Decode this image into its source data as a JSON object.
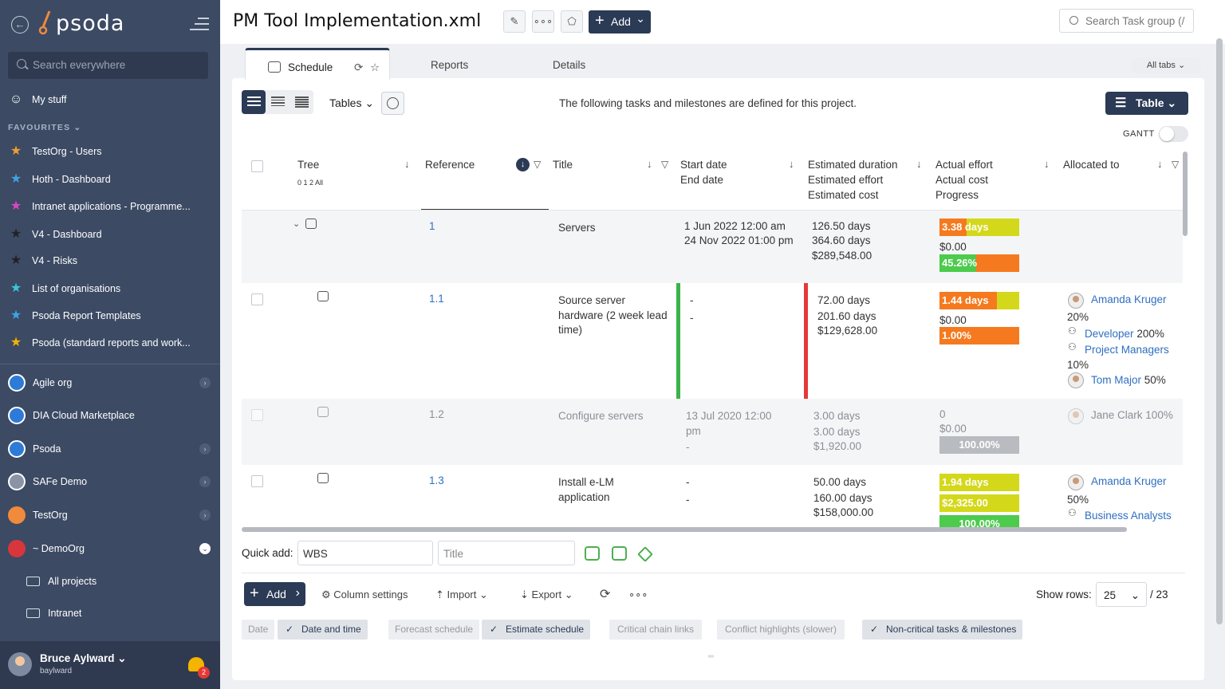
{
  "app": {
    "logo": "psoda"
  },
  "sidebar": {
    "search_placeholder": "Search everywhere",
    "my_stuff": "My stuff",
    "favourites_header": "FAVOURITES",
    "favourites": [
      {
        "label": "TestOrg - Users",
        "color": "#f39c33"
      },
      {
        "label": "Hoth - Dashboard",
        "color": "#3fa2e8"
      },
      {
        "label": "Intranet applications - Programme...",
        "color": "#d946c8"
      },
      {
        "label": "V4 - Dashboard",
        "color": "#333333"
      },
      {
        "label": "V4 - Risks",
        "color": "#333333"
      },
      {
        "label": "List of organisations",
        "color": "#40c4d8"
      },
      {
        "label": "Psoda Report Templates",
        "color": "#3fa2e8"
      },
      {
        "label": "Psoda (standard reports and work...",
        "color": "#f4b400"
      }
    ],
    "orgs": [
      {
        "label": "Agile org",
        "color": "#2d7bd6"
      },
      {
        "label": "DIA Cloud Marketplace",
        "color": "#2d7bd6"
      },
      {
        "label": "Psoda",
        "color": "#2d7bd6"
      },
      {
        "label": "SAFe Demo",
        "color": "#8a94a6"
      },
      {
        "label": "TestOrg",
        "color": "#f08a3c"
      },
      {
        "label": "~ DemoOrg",
        "color": "#d8363c"
      }
    ],
    "sub_items": [
      "All projects",
      "Intranet"
    ],
    "user": {
      "name": "Bruce Aylward",
      "id": "baylward",
      "notifications": "2"
    }
  },
  "header": {
    "title": "PM Tool Implementation.xml",
    "add_label": "Add",
    "search_placeholder": "Search Task group (/"
  },
  "tabs": {
    "items": [
      "Schedule",
      "Reports",
      "Details"
    ],
    "all_tabs": "All tabs"
  },
  "toolbar": {
    "tables_label": "Tables",
    "intro": "The following tasks and milestones are defined for this project.",
    "table_view": "Table",
    "gantt_label": "GANTT"
  },
  "columns": {
    "tree": "Tree",
    "tree_levels": "0 1 2 All",
    "reference": "Reference",
    "title": "Title",
    "start": "Start date",
    "end": "End date",
    "est_duration": "Estimated duration",
    "est_effort": "Estimated effort",
    "est_cost": "Estimated cost",
    "act_effort": "Actual effort",
    "act_cost": "Actual cost",
    "progress": "Progress",
    "allocated": "Allocated to"
  },
  "rows": [
    {
      "ref": "1",
      "title": "Servers",
      "start": "1 Jun 2022 12:00 am",
      "end": "24 Nov 2022 01:00 pm",
      "duration": "126.50 days",
      "effort": "364.60 days",
      "cost": "$289,548.00",
      "act_effort": "3.38 days",
      "act_cost": "$0.00",
      "progress": "45.26%",
      "progress_value": 45.26
    },
    {
      "ref": "1.1",
      "title": "Source server hardware (2 week lead time)",
      "start": "-",
      "end": "-",
      "duration": "72.00 days",
      "effort": "201.60 days",
      "cost": "$129,628.00",
      "act_effort": "1.44 days",
      "act_cost": "$0.00",
      "progress": "1.00%",
      "progress_value": 1.0,
      "alloc": [
        {
          "name": "Amanda Kruger",
          "pct": "20%"
        },
        {
          "name": "Developer",
          "pct": "200%"
        },
        {
          "name": "Project Managers",
          "pct": "10%"
        },
        {
          "name": "Tom Major",
          "pct": "50%"
        }
      ]
    },
    {
      "ref": "1.2",
      "title": "Configure servers",
      "start": "13 Jul 2020 12:00 pm",
      "end": "-",
      "duration": "3.00 days",
      "effort": "3.00 days",
      "cost": "$1,920.00",
      "act_effort": "0",
      "act_cost": "$0.00",
      "progress": "100.00%",
      "progress_value": 100,
      "alloc": [
        {
          "name": "Jane Clark",
          "pct": "100%"
        }
      ]
    },
    {
      "ref": "1.3",
      "title": "Install e-LM application",
      "start": "-",
      "end": "-",
      "duration": "50.00 days",
      "effort": "160.00 days",
      "cost": "$158,000.00",
      "act_effort": "1.94 days",
      "act_cost": "$2,325.00",
      "progress": "100.00%",
      "progress_value": 100,
      "alloc": [
        {
          "name": "Amanda Kruger",
          "pct": "50%"
        },
        {
          "name": "Business Analysts",
          "pct": ""
        }
      ]
    }
  ],
  "quick_add": {
    "label": "Quick add:",
    "wbs_value": "WBS",
    "title_placeholder": "Title"
  },
  "footer": {
    "add": "Add",
    "column_settings": "Column settings",
    "import": "Import",
    "export": "Export",
    "show_rows_label": "Show rows:",
    "show_rows_value": "25",
    "total": "/ 23"
  },
  "chips": [
    {
      "label": "Date",
      "on": false
    },
    {
      "label": "Date and time",
      "on": true
    },
    {
      "label": "Forecast schedule",
      "on": false
    },
    {
      "label": "Estimate schedule",
      "on": true
    },
    {
      "label": "Critical chain links",
      "on": false
    },
    {
      "label": "Conflict highlights (slower)",
      "on": false
    },
    {
      "label": "Non-critical tasks & milestones",
      "on": true
    }
  ]
}
